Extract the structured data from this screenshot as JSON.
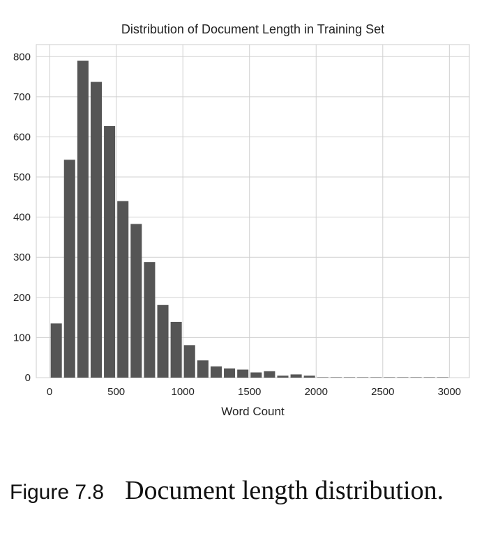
{
  "chart_data": {
    "type": "bar",
    "title": "Distribution of Document Length in Training Set",
    "xlabel": "Word Count",
    "ylabel": "",
    "xlim": [
      -100,
      3150
    ],
    "ylim": [
      0,
      830
    ],
    "xticks": [
      0,
      500,
      1000,
      1500,
      2000,
      2500,
      3000
    ],
    "yticks": [
      0,
      100,
      200,
      300,
      400,
      500,
      600,
      700,
      800
    ],
    "grid": true,
    "bin_width": 100,
    "bar_color": "#555555",
    "bins": [
      {
        "x": 50,
        "count": 135
      },
      {
        "x": 150,
        "count": 543
      },
      {
        "x": 250,
        "count": 790
      },
      {
        "x": 350,
        "count": 737
      },
      {
        "x": 450,
        "count": 627
      },
      {
        "x": 550,
        "count": 440
      },
      {
        "x": 650,
        "count": 383
      },
      {
        "x": 750,
        "count": 288
      },
      {
        "x": 850,
        "count": 181
      },
      {
        "x": 950,
        "count": 139
      },
      {
        "x": 1050,
        "count": 81
      },
      {
        "x": 1150,
        "count": 43
      },
      {
        "x": 1250,
        "count": 28
      },
      {
        "x": 1350,
        "count": 23
      },
      {
        "x": 1450,
        "count": 20
      },
      {
        "x": 1550,
        "count": 13
      },
      {
        "x": 1650,
        "count": 16
      },
      {
        "x": 1750,
        "count": 5
      },
      {
        "x": 1850,
        "count": 8
      },
      {
        "x": 1950,
        "count": 5
      },
      {
        "x": 2050,
        "count": 1
      },
      {
        "x": 2150,
        "count": 1
      },
      {
        "x": 2250,
        "count": 1
      },
      {
        "x": 2350,
        "count": 1
      },
      {
        "x": 2450,
        "count": 1
      },
      {
        "x": 2550,
        "count": 1
      },
      {
        "x": 2650,
        "count": 1
      },
      {
        "x": 2750,
        "count": 1
      },
      {
        "x": 2850,
        "count": 1
      },
      {
        "x": 2950,
        "count": 1
      }
    ]
  },
  "caption": {
    "label": "Figure 7.8",
    "text": "Document length distribution."
  }
}
